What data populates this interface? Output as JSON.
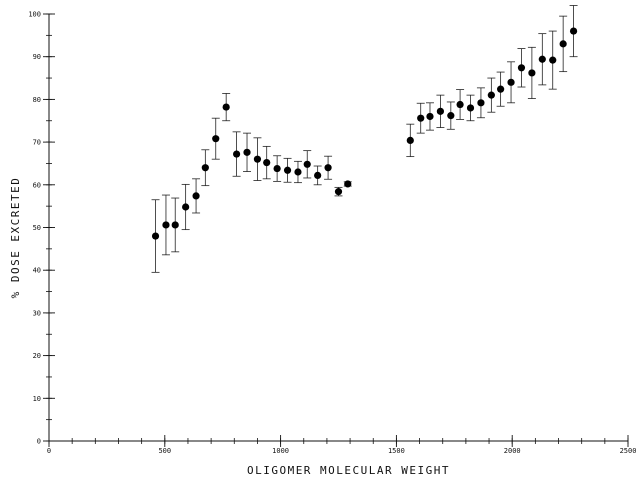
{
  "chart_data": {
    "type": "scatter",
    "title": "",
    "xlabel": "OLIGOMER MOLECULAR WEIGHT",
    "ylabel": "% DOSE EXCRETED",
    "xlim": [
      0,
      2500
    ],
    "ylim": [
      0,
      100
    ],
    "x_ticks": [
      0,
      500,
      1000,
      1500,
      2000,
      2500
    ],
    "y_ticks": [
      0,
      10,
      20,
      30,
      40,
      50,
      60,
      70,
      80,
      90,
      100
    ],
    "x_minor_step": 100,
    "y_minor_step": 5,
    "grid": false,
    "marker": "filled-circle",
    "error_bars": true,
    "points": [
      {
        "x": 460,
        "y": 48.0,
        "err": 8.5
      },
      {
        "x": 505,
        "y": 50.6,
        "err": 7.0
      },
      {
        "x": 545,
        "y": 50.6,
        "err": 6.3
      },
      {
        "x": 590,
        "y": 54.8,
        "err": 5.3
      },
      {
        "x": 635,
        "y": 57.4,
        "err": 4.0
      },
      {
        "x": 675,
        "y": 64.0,
        "err": 4.2
      },
      {
        "x": 720,
        "y": 70.8,
        "err": 4.8
      },
      {
        "x": 765,
        "y": 78.2,
        "err": 3.2
      },
      {
        "x": 810,
        "y": 67.2,
        "err": 5.2
      },
      {
        "x": 855,
        "y": 67.6,
        "err": 4.5
      },
      {
        "x": 900,
        "y": 66.0,
        "err": 5.0
      },
      {
        "x": 940,
        "y": 65.2,
        "err": 3.8
      },
      {
        "x": 985,
        "y": 63.8,
        "err": 3.0
      },
      {
        "x": 1030,
        "y": 63.4,
        "err": 2.8
      },
      {
        "x": 1075,
        "y": 63.0,
        "err": 2.5
      },
      {
        "x": 1115,
        "y": 64.8,
        "err": 3.2
      },
      {
        "x": 1160,
        "y": 62.2,
        "err": 2.2
      },
      {
        "x": 1205,
        "y": 64.0,
        "err": 2.7
      },
      {
        "x": 1250,
        "y": 58.4,
        "err": 1.0
      },
      {
        "x": 1290,
        "y": 60.2,
        "err": 0.5
      },
      {
        "x": 1560,
        "y": 70.4,
        "err": 3.8
      },
      {
        "x": 1605,
        "y": 75.6,
        "err": 3.5
      },
      {
        "x": 1645,
        "y": 76.0,
        "err": 3.2
      },
      {
        "x": 1690,
        "y": 77.2,
        "err": 3.8
      },
      {
        "x": 1735,
        "y": 76.2,
        "err": 3.2
      },
      {
        "x": 1775,
        "y": 78.8,
        "err": 3.5
      },
      {
        "x": 1820,
        "y": 78.0,
        "err": 3.0
      },
      {
        "x": 1865,
        "y": 79.2,
        "err": 3.5
      },
      {
        "x": 1910,
        "y": 81.0,
        "err": 4.0
      },
      {
        "x": 1950,
        "y": 82.4,
        "err": 4.0
      },
      {
        "x": 1995,
        "y": 84.0,
        "err": 4.8
      },
      {
        "x": 2040,
        "y": 87.4,
        "err": 4.5
      },
      {
        "x": 2085,
        "y": 86.2,
        "err": 6.0
      },
      {
        "x": 2130,
        "y": 89.4,
        "err": 6.0
      },
      {
        "x": 2175,
        "y": 89.2,
        "err": 6.8
      },
      {
        "x": 2220,
        "y": 93.0,
        "err": 6.5
      },
      {
        "x": 2265,
        "y": 96.0,
        "err": 6.0
      }
    ]
  }
}
